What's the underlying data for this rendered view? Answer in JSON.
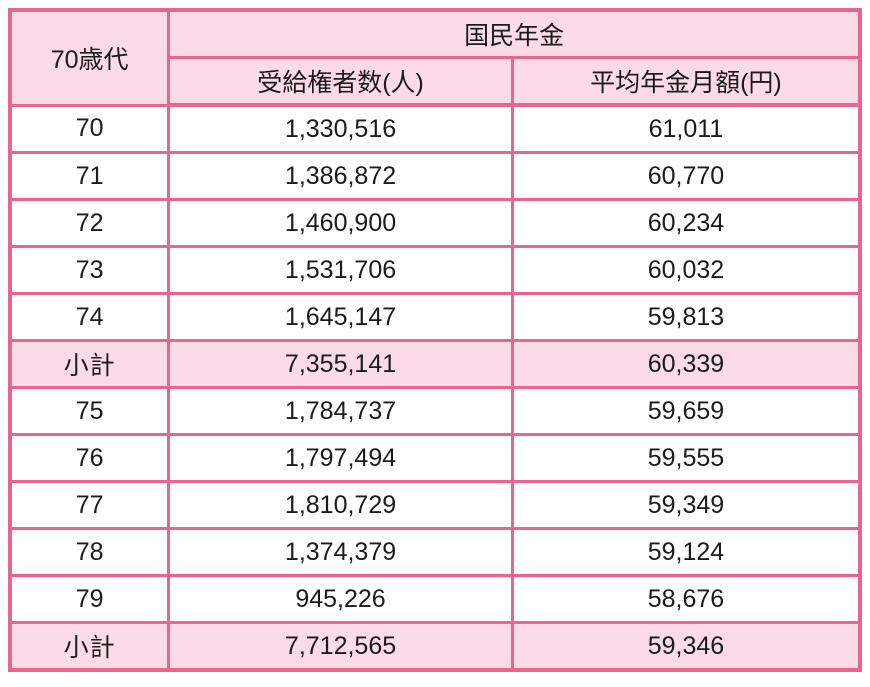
{
  "colors": {
    "border": "#e9648f",
    "header_bg": "#fbdbe7",
    "text": "#1b1b1b"
  },
  "table": {
    "header": {
      "age_group": "70歳代",
      "group_title": "国民年金",
      "beneficiaries": "受給権者数(人)",
      "monthly": "平均年金月額(円)"
    },
    "rows": [
      {
        "age": "70",
        "beneficiaries": "1,330,516",
        "monthly": "61,011",
        "subtotal": false
      },
      {
        "age": "71",
        "beneficiaries": "1,386,872",
        "monthly": "60,770",
        "subtotal": false
      },
      {
        "age": "72",
        "beneficiaries": "1,460,900",
        "monthly": "60,234",
        "subtotal": false
      },
      {
        "age": "73",
        "beneficiaries": "1,531,706",
        "monthly": "60,032",
        "subtotal": false
      },
      {
        "age": "74",
        "beneficiaries": "1,645,147",
        "monthly": "59,813",
        "subtotal": false
      },
      {
        "age": "小計",
        "beneficiaries": "7,355,141",
        "monthly": "60,339",
        "subtotal": true
      },
      {
        "age": "75",
        "beneficiaries": "1,784,737",
        "monthly": "59,659",
        "subtotal": false
      },
      {
        "age": "76",
        "beneficiaries": "1,797,494",
        "monthly": "59,555",
        "subtotal": false
      },
      {
        "age": "77",
        "beneficiaries": "1,810,729",
        "monthly": "59,349",
        "subtotal": false
      },
      {
        "age": "78",
        "beneficiaries": "1,374,379",
        "monthly": "59,124",
        "subtotal": false
      },
      {
        "age": "79",
        "beneficiaries": "945,226",
        "monthly": "58,676",
        "subtotal": false
      },
      {
        "age": "小計",
        "beneficiaries": "7,712,565",
        "monthly": "59,346",
        "subtotal": true
      }
    ]
  },
  "chart_data": {
    "type": "table",
    "title": "国民年金",
    "columns": [
      "70歳代",
      "受給権者数(人)",
      "平均年金月額(円)"
    ],
    "rows": [
      [
        "70",
        1330516,
        61011
      ],
      [
        "71",
        1386872,
        60770
      ],
      [
        "72",
        1460900,
        60234
      ],
      [
        "73",
        1531706,
        60032
      ],
      [
        "74",
        1645147,
        59813
      ],
      [
        "小計",
        7355141,
        60339
      ],
      [
        "75",
        1784737,
        59659
      ],
      [
        "76",
        1797494,
        59555
      ],
      [
        "77",
        1810729,
        59349
      ],
      [
        "78",
        1374379,
        59124
      ],
      [
        "79",
        945226,
        58676
      ],
      [
        "小計",
        7712565,
        59346
      ]
    ]
  }
}
